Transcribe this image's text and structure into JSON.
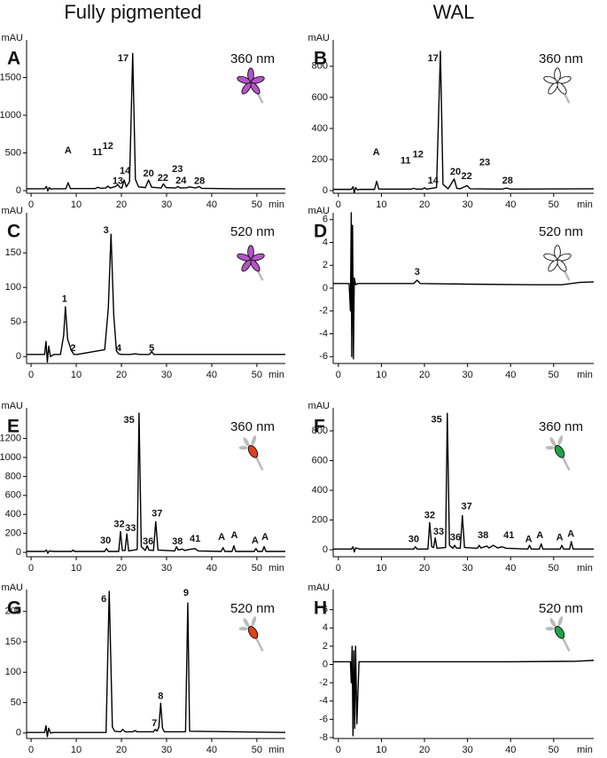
{
  "columns": [
    "Fully pigmented",
    "WAL"
  ],
  "chart_data": [
    {
      "type": "line",
      "panel": "A",
      "wavelength": "360 nm",
      "ylabel": "mAU",
      "xlabel": "min",
      "xlim": [
        -1,
        56.3
      ],
      "ylim": [
        -35,
        2000
      ],
      "xticks": [
        0,
        10,
        20,
        30,
        40,
        50
      ],
      "yticks": [
        0,
        500,
        1000,
        1500
      ],
      "x": [
        -1,
        3,
        3.4,
        3.7,
        4,
        4.4,
        5,
        7.7,
        8.2,
        8.7,
        14.2,
        14.8,
        15.4,
        16.5,
        17,
        17.5,
        18.7,
        19.2,
        19.7,
        20.1,
        20.6,
        21.1,
        21.8,
        22.5,
        23.1,
        23.8,
        25.3,
        26,
        26.7,
        28.8,
        29.3,
        29.9,
        32,
        32.5,
        33,
        34.5,
        35,
        36.5,
        37.2,
        37.8,
        45,
        56.3
      ],
      "series": [
        {
          "color": "#000000",
          "values": [
            25,
            25,
            55,
            -5,
            40,
            20,
            25,
            25,
            105,
            28,
            28,
            45,
            30,
            35,
            60,
            35,
            55,
            80,
            40,
            35,
            140,
            50,
            120,
            1820,
            150,
            50,
            40,
            140,
            45,
            35,
            90,
            40,
            35,
            55,
            35,
            38,
            50,
            35,
            55,
            30,
            25,
            25
          ]
        }
      ],
      "annotations": [
        {
          "text": "A",
          "x": 8.2,
          "y": 530
        },
        {
          "text": "11",
          "x": 14.7,
          "y": 505
        },
        {
          "text": "12",
          "x": 17,
          "y": 590
        },
        {
          "text": "13",
          "x": 19.2,
          "y": 120
        },
        {
          "text": "14",
          "x": 20.8,
          "y": 260
        },
        {
          "text": "17",
          "x": 20.4,
          "y": 1750
        },
        {
          "text": "20",
          "x": 26,
          "y": 225
        },
        {
          "text": "22",
          "x": 29.2,
          "y": 165
        },
        {
          "text": "23",
          "x": 32.4,
          "y": 280
        },
        {
          "text": "24",
          "x": 33.2,
          "y": 130
        },
        {
          "text": "28",
          "x": 37.3,
          "y": 120
        }
      ]
    },
    {
      "type": "line",
      "panel": "B",
      "wavelength": "360 nm",
      "ylabel": "mAU",
      "xlabel": "min",
      "xlim": [
        -1.2,
        59.3
      ],
      "ylim": [
        -17,
        970
      ],
      "xticks": [
        0,
        10,
        20,
        30,
        40,
        50
      ],
      "yticks": [
        0,
        200,
        400,
        600,
        800
      ],
      "x": [
        -1.2,
        3,
        3.4,
        3.7,
        4,
        4.4,
        5,
        8.4,
        8.9,
        9.4,
        17,
        17.5,
        18,
        19.5,
        20,
        20.5,
        22.8,
        23.7,
        24.3,
        25.5,
        26.9,
        27.5,
        28.3,
        29.9,
        30.6,
        38,
        39,
        40,
        59.3
      ],
      "series": [
        {
          "color": "#000000",
          "values": [
            8,
            8,
            25,
            -15,
            20,
            5,
            8,
            8,
            60,
            10,
            10,
            15,
            10,
            10,
            18,
            10,
            20,
            897,
            40,
            12,
            75,
            15,
            12,
            32,
            12,
            10,
            16,
            10,
            12
          ]
        }
      ],
      "annotations": [
        {
          "text": "A",
          "x": 8.8,
          "y": 245
        },
        {
          "text": "11",
          "x": 15.6,
          "y": 190
        },
        {
          "text": "12",
          "x": 18.5,
          "y": 230
        },
        {
          "text": "14",
          "x": 22,
          "y": 63
        },
        {
          "text": "17",
          "x": 22,
          "y": 850
        },
        {
          "text": "20",
          "x": 27.2,
          "y": 120
        },
        {
          "text": "22",
          "x": 29.8,
          "y": 90
        },
        {
          "text": "23",
          "x": 34,
          "y": 180
        },
        {
          "text": "28",
          "x": 39.3,
          "y": 63
        }
      ]
    },
    {
      "type": "line",
      "panel": "C",
      "wavelength": "520 nm",
      "ylabel": "mAU",
      "xlabel": "min",
      "xlim": [
        -1,
        56.3
      ],
      "ylim": [
        -10,
        208
      ],
      "xticks": [
        0,
        10,
        20,
        30,
        40,
        50
      ],
      "yticks": [
        0,
        50,
        100,
        150
      ],
      "x": [
        -1,
        3,
        3.3,
        3.6,
        3.9,
        4.3,
        5,
        6.5,
        7.2,
        7.6,
        8.1,
        8.9,
        9.5,
        10.2,
        16.3,
        17.1,
        17.7,
        18.3,
        18.9,
        19.4,
        20,
        22,
        23,
        24,
        26.2,
        26.7,
        27.2,
        56.3
      ],
      "series": [
        {
          "color": "#000000",
          "values": [
            3,
            3,
            22,
            -8,
            15,
            0,
            3,
            3,
            30,
            72,
            25,
            9,
            3,
            3,
            10,
            70,
            177,
            60,
            8,
            4,
            3,
            3,
            4,
            3,
            3,
            7,
            3,
            3
          ]
        }
      ],
      "annotations": [
        {
          "text": "1",
          "x": 7.4,
          "y": 83
        },
        {
          "text": "2",
          "x": 9.3,
          "y": 12
        },
        {
          "text": "3",
          "x": 16.6,
          "y": 182
        },
        {
          "text": "4",
          "x": 19.4,
          "y": 12
        },
        {
          "text": "5",
          "x": 26.7,
          "y": 12
        }
      ]
    },
    {
      "type": "line",
      "panel": "D",
      "wavelength": "520 nm",
      "ylabel": "mAU",
      "xlabel": "min",
      "xlim": [
        -1.2,
        59.3
      ],
      "ylim": [
        -6.6,
        6.6
      ],
      "xticks": [
        0,
        10,
        20,
        30,
        40,
        50
      ],
      "yticks": [
        -6,
        -4,
        -2,
        0,
        2,
        4,
        6
      ],
      "x": [
        -1.2,
        2.5,
        2.8,
        3,
        3.1,
        3.3,
        3.5,
        3.7,
        4,
        4.5,
        17.5,
        18.3,
        19,
        30,
        45,
        52,
        56,
        59.3
      ],
      "series": [
        {
          "color": "#000000",
          "values": [
            0.4,
            0.4,
            -2,
            6.6,
            -6,
            5.5,
            -6.2,
            0.9,
            0.3,
            0.4,
            0.4,
            0.7,
            0.4,
            0.35,
            0.3,
            0.3,
            0.5,
            0.55
          ]
        }
      ],
      "annotations": [
        {
          "text": "3",
          "x": 18.3,
          "y": 1.4
        }
      ]
    },
    {
      "type": "line",
      "panel": "E",
      "wavelength": "360 nm",
      "ylabel": "mAU",
      "xlabel": "min",
      "xlim": [
        -1,
        56.3
      ],
      "ylim": [
        -46,
        1523
      ],
      "xticks": [
        0,
        10,
        20,
        30,
        40,
        50
      ],
      "yticks": [
        0,
        200,
        400,
        600,
        800,
        1000,
        1200
      ],
      "x": [
        -1,
        3,
        3.4,
        3.7,
        4,
        5,
        9,
        9.3,
        9.6,
        16.3,
        16.7,
        17.1,
        19.4,
        19.8,
        20.2,
        20.8,
        21.2,
        21.6,
        23.5,
        23.9,
        24.4,
        25.3,
        25.7,
        26.1,
        27.1,
        27.6,
        28.1,
        31.8,
        32.2,
        32.6,
        33.5,
        34,
        35,
        36.3,
        37,
        42.1,
        42.5,
        42.9,
        44.5,
        44.9,
        45.3,
        49.4,
        49.8,
        50.2,
        51.2,
        51.6,
        52,
        56.3
      ],
      "series": [
        {
          "color": "#000000",
          "values": [
            10,
            10,
            25,
            -10,
            15,
            10,
            10,
            25,
            10,
            10,
            40,
            10,
            10,
            220,
            20,
            20,
            195,
            15,
            30,
            1467,
            60,
            20,
            70,
            25,
            20,
            323,
            25,
            15,
            60,
            25,
            35,
            20,
            30,
            40,
            15,
            10,
            50,
            10,
            10,
            70,
            10,
            10,
            40,
            10,
            10,
            60,
            10,
            10
          ]
        }
      ],
      "annotations": [
        {
          "text": "30",
          "x": 16.5,
          "y": 120
        },
        {
          "text": "32",
          "x": 19.5,
          "y": 295
        },
        {
          "text": "33",
          "x": 22,
          "y": 250
        },
        {
          "text": "35",
          "x": 21.7,
          "y": 1390
        },
        {
          "text": "36",
          "x": 25.9,
          "y": 110
        },
        {
          "text": "37",
          "x": 27.9,
          "y": 405
        },
        {
          "text": "38",
          "x": 32.4,
          "y": 110
        },
        {
          "text": "41",
          "x": 36.3,
          "y": 140
        },
        {
          "text": "A",
          "x": 42.2,
          "y": 160
        },
        {
          "text": "A",
          "x": 45,
          "y": 175
        },
        {
          "text": "A",
          "x": 49.6,
          "y": 120
        },
        {
          "text": "A",
          "x": 51.8,
          "y": 160
        }
      ]
    },
    {
      "type": "line",
      "panel": "F",
      "wavelength": "360 nm",
      "ylabel": "mAU",
      "xlabel": "min",
      "xlim": [
        -1.2,
        59.3
      ],
      "ylim": [
        -47,
        955
      ],
      "xticks": [
        0,
        10,
        20,
        30,
        40,
        50
      ],
      "yticks": [
        0,
        200,
        400,
        600,
        800
      ],
      "x": [
        -1.2,
        3,
        3.4,
        3.7,
        4,
        5,
        17.5,
        17.9,
        18.3,
        20.8,
        21.2,
        21.7,
        22.1,
        22.5,
        22.9,
        24.9,
        25.3,
        25.8,
        26.6,
        27,
        27.4,
        28.3,
        28.8,
        29.3,
        32.3,
        32.7,
        33.1,
        34.5,
        35,
        36,
        37,
        38,
        39,
        44,
        44.4,
        44.8,
        46.7,
        47.1,
        47.5,
        51.5,
        51.9,
        52.3,
        53.7,
        54.1,
        54.5,
        59.3
      ],
      "series": [
        {
          "color": "#000000",
          "values": [
            5,
            5,
            20,
            -15,
            12,
            5,
            5,
            20,
            5,
            5,
            182,
            20,
            15,
            80,
            10,
            15,
            918,
            30,
            10,
            30,
            12,
            10,
            230,
            15,
            10,
            30,
            12,
            25,
            12,
            30,
            12,
            20,
            10,
            5,
            30,
            5,
            5,
            40,
            5,
            5,
            30,
            5,
            5,
            55,
            5,
            5
          ]
        }
      ],
      "annotations": [
        {
          "text": "30",
          "x": 17.5,
          "y": 70
        },
        {
          "text": "32",
          "x": 21.2,
          "y": 230
        },
        {
          "text": "33",
          "x": 23.3,
          "y": 120
        },
        {
          "text": "35",
          "x": 22.8,
          "y": 875
        },
        {
          "text": "36",
          "x": 27.2,
          "y": 80
        },
        {
          "text": "37",
          "x": 29.8,
          "y": 290
        },
        {
          "text": "38",
          "x": 33.6,
          "y": 95
        },
        {
          "text": "41",
          "x": 39.6,
          "y": 95
        },
        {
          "text": "A",
          "x": 44.2,
          "y": 70
        },
        {
          "text": "A",
          "x": 46.8,
          "y": 95
        },
        {
          "text": "A",
          "x": 51.4,
          "y": 80
        },
        {
          "text": "A",
          "x": 54,
          "y": 105
        }
      ]
    },
    {
      "type": "line",
      "panel": "G",
      "wavelength": "520 nm",
      "ylabel": "mAU",
      "xlabel": "min",
      "xlim": [
        -1,
        56.3
      ],
      "ylim": [
        -9,
        236
      ],
      "xticks": [
        0,
        10,
        20,
        30,
        40,
        50
      ],
      "yticks": [
        0,
        50,
        100,
        150,
        200
      ],
      "x": [
        -1,
        3,
        3.3,
        3.6,
        3.9,
        4.3,
        5,
        16.6,
        17.3,
        18,
        18.5,
        19.8,
        20.3,
        20.8,
        22.5,
        23,
        23.5,
        27.1,
        27.5,
        27.9,
        28.3,
        28.7,
        29.1,
        29.5,
        34.2,
        34.7,
        35.1,
        56.3
      ],
      "series": [
        {
          "color": "#000000",
          "values": [
            1,
            1,
            12,
            -6,
            8,
            0,
            1,
            1,
            233,
            10,
            3,
            2,
            6,
            2,
            2,
            4,
            2,
            2,
            6,
            3,
            10,
            49,
            8,
            2,
            2,
            214,
            3,
            1
          ]
        }
      ],
      "annotations": [
        {
          "text": "6",
          "x": 16.1,
          "y": 220
        },
        {
          "text": "7",
          "x": 27.3,
          "y": 16
        },
        {
          "text": "8",
          "x": 28.7,
          "y": 60
        },
        {
          "text": "9",
          "x": 34.3,
          "y": 230
        }
      ]
    },
    {
      "type": "line",
      "panel": "H",
      "wavelength": "520 nm",
      "ylabel": "mAU",
      "xlabel": "min",
      "xlim": [
        -1.2,
        59.3
      ],
      "ylim": [
        -8.1,
        8.2
      ],
      "xticks": [
        0,
        10,
        20,
        30,
        40,
        50
      ],
      "yticks": [
        -8,
        -6,
        -4,
        -2,
        0,
        2,
        4,
        6
      ],
      "x": [
        -1.2,
        2.8,
        3,
        3.2,
        3.4,
        3.6,
        3.8,
        4,
        4.3,
        4.8,
        20,
        40,
        55,
        59.3
      ],
      "series": [
        {
          "color": "#000000",
          "values": [
            0.3,
            0.3,
            -2,
            2,
            -7.8,
            1.5,
            -7,
            2,
            -6.5,
            0.3,
            0.3,
            0.3,
            0.35,
            0.45
          ]
        }
      ],
      "annotations": []
    }
  ]
}
